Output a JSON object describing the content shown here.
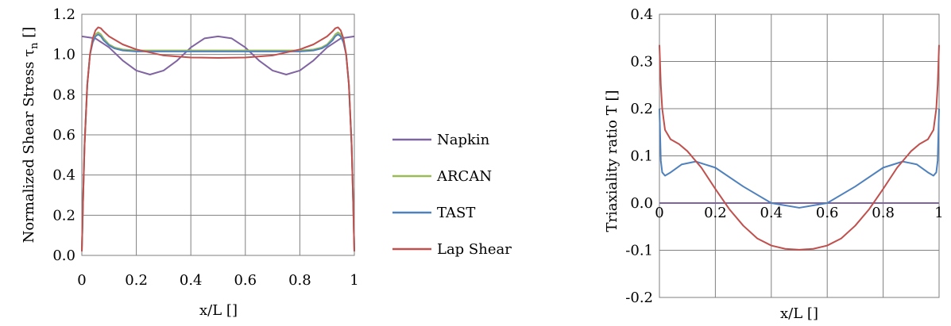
{
  "series_colors": {
    "Napkin": "#8064a2",
    "ARCAN": "#9bbb59",
    "TAST": "#4f81bd",
    "Lap Shear": "#c0504d"
  },
  "chart_data": [
    {
      "type": "line",
      "title": "",
      "xlabel": "x/L []",
      "ylabel_main": "Normalized  Shear Stress τ",
      "ylabel_sub": "n",
      "ylabel_tail": " []",
      "xlim": [
        0,
        1
      ],
      "ylim": [
        0,
        1.2
      ],
      "xticks": [
        0,
        0.2,
        0.4,
        0.6,
        0.8,
        1
      ],
      "xtick_labels": [
        "0",
        "0.2",
        "0.4",
        "0.6",
        "0.8",
        "1"
      ],
      "yticks": [
        0,
        0.2,
        0.4,
        0.6,
        0.8,
        1.0,
        1.2
      ],
      "ytick_labels": [
        "0.0",
        "0.2",
        "0.4",
        "0.6",
        "0.8",
        "1.0",
        "1.2"
      ],
      "grid": true,
      "legend": "right",
      "series": [
        {
          "name": "Napkin",
          "x": [
            0,
            0.05,
            0.1,
            0.15,
            0.2,
            0.25,
            0.3,
            0.35,
            0.4,
            0.45,
            0.5,
            0.55,
            0.6,
            0.65,
            0.7,
            0.75,
            0.8,
            0.85,
            0.9,
            0.95,
            1
          ],
          "y": [
            1.09,
            1.08,
            1.035,
            0.97,
            0.92,
            0.9,
            0.92,
            0.97,
            1.035,
            1.08,
            1.09,
            1.08,
            1.035,
            0.97,
            0.92,
            0.9,
            0.92,
            0.97,
            1.035,
            1.08,
            1.09
          ]
        },
        {
          "name": "ARCAN",
          "x": [
            0,
            0.005,
            0.01,
            0.02,
            0.03,
            0.04,
            0.05,
            0.06,
            0.07,
            0.08,
            0.1,
            0.12,
            0.15,
            0.2,
            0.3,
            0.4,
            0.5,
            0.6,
            0.7,
            0.8,
            0.85,
            0.88,
            0.9,
            0.92,
            0.93,
            0.94,
            0.95,
            0.96,
            0.97,
            0.98,
            0.99,
            0.995,
            1
          ],
          "y": [
            0.02,
            0.3,
            0.55,
            0.85,
            1.0,
            1.07,
            1.1,
            1.11,
            1.1,
            1.08,
            1.05,
            1.035,
            1.025,
            1.02,
            1.02,
            1.02,
            1.02,
            1.02,
            1.02,
            1.02,
            1.025,
            1.035,
            1.05,
            1.08,
            1.1,
            1.11,
            1.1,
            1.07,
            1.0,
            0.85,
            0.55,
            0.3,
            0.02
          ]
        },
        {
          "name": "TAST",
          "x": [
            0,
            0.005,
            0.01,
            0.02,
            0.03,
            0.04,
            0.05,
            0.06,
            0.07,
            0.08,
            0.1,
            0.12,
            0.15,
            0.2,
            0.3,
            0.4,
            0.5,
            0.6,
            0.7,
            0.8,
            0.85,
            0.88,
            0.9,
            0.92,
            0.93,
            0.94,
            0.95,
            0.96,
            0.97,
            0.98,
            0.99,
            0.995,
            1
          ],
          "y": [
            0.02,
            0.3,
            0.55,
            0.85,
            1.0,
            1.06,
            1.09,
            1.1,
            1.09,
            1.07,
            1.045,
            1.03,
            1.02,
            1.015,
            1.015,
            1.015,
            1.015,
            1.015,
            1.015,
            1.015,
            1.02,
            1.03,
            1.045,
            1.07,
            1.09,
            1.1,
            1.09,
            1.06,
            1.0,
            0.85,
            0.55,
            0.3,
            0.02
          ]
        },
        {
          "name": "Lap Shear",
          "x": [
            0,
            0.005,
            0.01,
            0.02,
            0.03,
            0.04,
            0.05,
            0.06,
            0.07,
            0.08,
            0.1,
            0.15,
            0.2,
            0.3,
            0.4,
            0.5,
            0.6,
            0.7,
            0.8,
            0.85,
            0.9,
            0.92,
            0.93,
            0.94,
            0.95,
            0.96,
            0.97,
            0.98,
            0.99,
            0.995,
            1
          ],
          "y": [
            0.02,
            0.3,
            0.55,
            0.85,
            1.0,
            1.08,
            1.12,
            1.135,
            1.13,
            1.115,
            1.09,
            1.05,
            1.025,
            0.995,
            0.985,
            0.983,
            0.985,
            0.995,
            1.025,
            1.05,
            1.09,
            1.115,
            1.13,
            1.135,
            1.12,
            1.08,
            1.0,
            0.85,
            0.55,
            0.3,
            0.02
          ]
        }
      ]
    },
    {
      "type": "line",
      "title": "",
      "xlabel": "x/L []",
      "ylabel": "Triaxiality ratio T []",
      "xlim": [
        0,
        1
      ],
      "ylim": [
        -0.2,
        0.4
      ],
      "xticks": [
        0,
        0.2,
        0.4,
        0.6,
        0.8,
        1
      ],
      "xtick_labels": [
        "0",
        "0.2",
        "0.4",
        "0.6",
        "0.8",
        "1"
      ],
      "yticks": [
        -0.2,
        -0.1,
        0,
        0.1,
        0.2,
        0.3,
        0.4
      ],
      "ytick_labels": [
        "-0.2",
        "-0.1",
        "0.0",
        "0.1",
        "0.2",
        "0.3",
        "0.4"
      ],
      "grid": true,
      "series": [
        {
          "name": "Napkin",
          "x": [
            0,
            1
          ],
          "y": [
            0,
            0
          ]
        },
        {
          "name": "TAST",
          "x": [
            0,
            0.005,
            0.01,
            0.02,
            0.04,
            0.08,
            0.13,
            0.2,
            0.3,
            0.4,
            0.5,
            0.6,
            0.7,
            0.8,
            0.87,
            0.92,
            0.96,
            0.98,
            0.99,
            0.995,
            1
          ],
          "y": [
            0.2,
            0.09,
            0.065,
            0.058,
            0.065,
            0.082,
            0.088,
            0.075,
            0.035,
            0.0,
            -0.01,
            0.0,
            0.035,
            0.075,
            0.088,
            0.082,
            0.065,
            0.058,
            0.065,
            0.09,
            0.2
          ]
        },
        {
          "name": "Lap Shear",
          "x": [
            0,
            0.005,
            0.01,
            0.02,
            0.04,
            0.07,
            0.1,
            0.15,
            0.2,
            0.25,
            0.3,
            0.35,
            0.4,
            0.45,
            0.5,
            0.55,
            0.6,
            0.65,
            0.7,
            0.75,
            0.8,
            0.85,
            0.9,
            0.93,
            0.96,
            0.98,
            0.99,
            0.995,
            1
          ],
          "y": [
            0.335,
            0.25,
            0.2,
            0.155,
            0.135,
            0.125,
            0.11,
            0.075,
            0.03,
            -0.013,
            -0.048,
            -0.075,
            -0.09,
            -0.097,
            -0.099,
            -0.097,
            -0.09,
            -0.075,
            -0.048,
            -0.013,
            0.03,
            0.075,
            0.11,
            0.125,
            0.135,
            0.155,
            0.2,
            0.25,
            0.335
          ]
        }
      ]
    }
  ]
}
